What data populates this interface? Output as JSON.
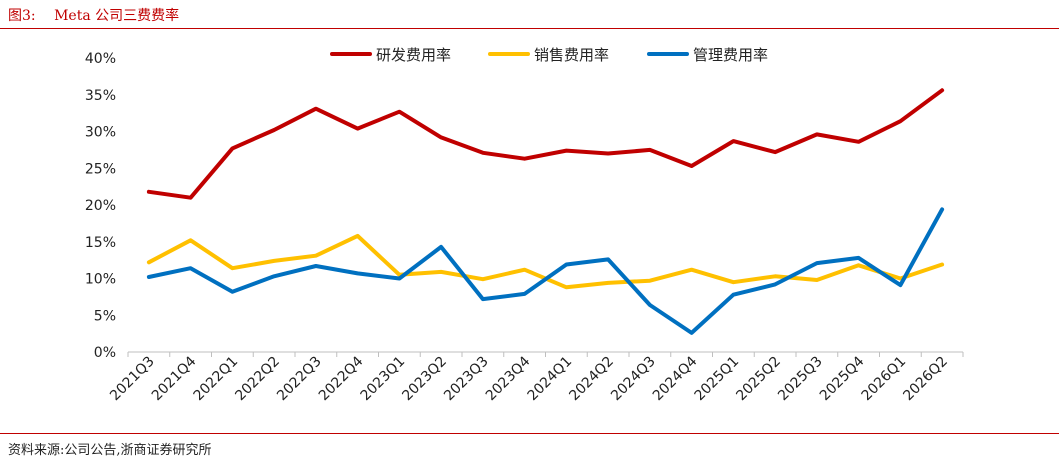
{
  "figure": {
    "number": "图3:",
    "title": "Meta 公司三费费率",
    "source": "资料来源:公司公告,浙商证券研究所"
  },
  "chart_data": {
    "type": "line",
    "title": "Meta 公司三费费率",
    "xlabel": "",
    "ylabel": "",
    "ylim": [
      0,
      40
    ],
    "y_unit": "%",
    "yticks": [
      "0%",
      "5%",
      "10%",
      "15%",
      "20%",
      "25%",
      "30%",
      "35%",
      "40%"
    ],
    "grid": false,
    "legend_position": "top-center",
    "categories": [
      "2021Q3",
      "2021Q4",
      "2022Q1",
      "2022Q2",
      "2022Q3",
      "2022Q4",
      "2023Q1",
      "2023Q2",
      "2023Q3",
      "2023Q4",
      "2024Q1",
      "2024Q2",
      "2024Q3",
      "2024Q4",
      "2025Q1",
      "2025Q2",
      "2025Q3",
      "2025Q4",
      "2026Q1",
      "2026Q2"
    ],
    "series": [
      {
        "name": "研发费用率",
        "color": "#c00000",
        "values": [
          21.8,
          21.0,
          27.7,
          30.2,
          33.1,
          30.4,
          32.7,
          29.2,
          27.1,
          26.3,
          27.4,
          27.0,
          27.5,
          25.3,
          28.7,
          27.2,
          29.6,
          28.6,
          31.4,
          35.6
        ]
      },
      {
        "name": "销售费用率",
        "color": "#ffc000",
        "values": [
          12.2,
          15.2,
          11.4,
          12.4,
          13.1,
          15.8,
          10.5,
          10.9,
          9.9,
          11.2,
          8.8,
          9.4,
          9.7,
          11.2,
          9.5,
          10.3,
          9.8,
          11.8,
          10.0,
          11.9
        ]
      },
      {
        "name": "管理费用率",
        "color": "#0070c0",
        "values": [
          10.2,
          11.4,
          8.2,
          10.3,
          11.7,
          10.7,
          10.0,
          14.3,
          7.2,
          7.9,
          11.9,
          12.6,
          6.4,
          2.6,
          7.8,
          9.2,
          12.1,
          12.8,
          9.1,
          19.4
        ]
      }
    ]
  }
}
